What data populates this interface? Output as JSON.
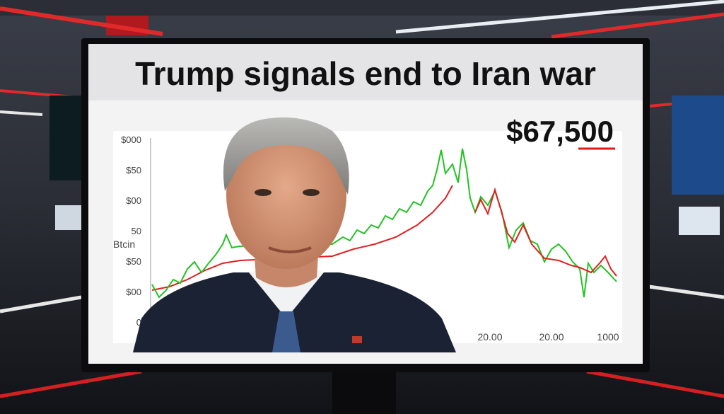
{
  "headline": "Trump signals end to Iran war",
  "price": "$67,500",
  "chart": {
    "axis_label": "Btcin",
    "y_labels": [
      "$000",
      "$50",
      "$00",
      "50",
      "$50",
      "$00",
      "0"
    ],
    "x_labels": [
      "20.00",
      "20.00",
      "1000"
    ]
  }
}
